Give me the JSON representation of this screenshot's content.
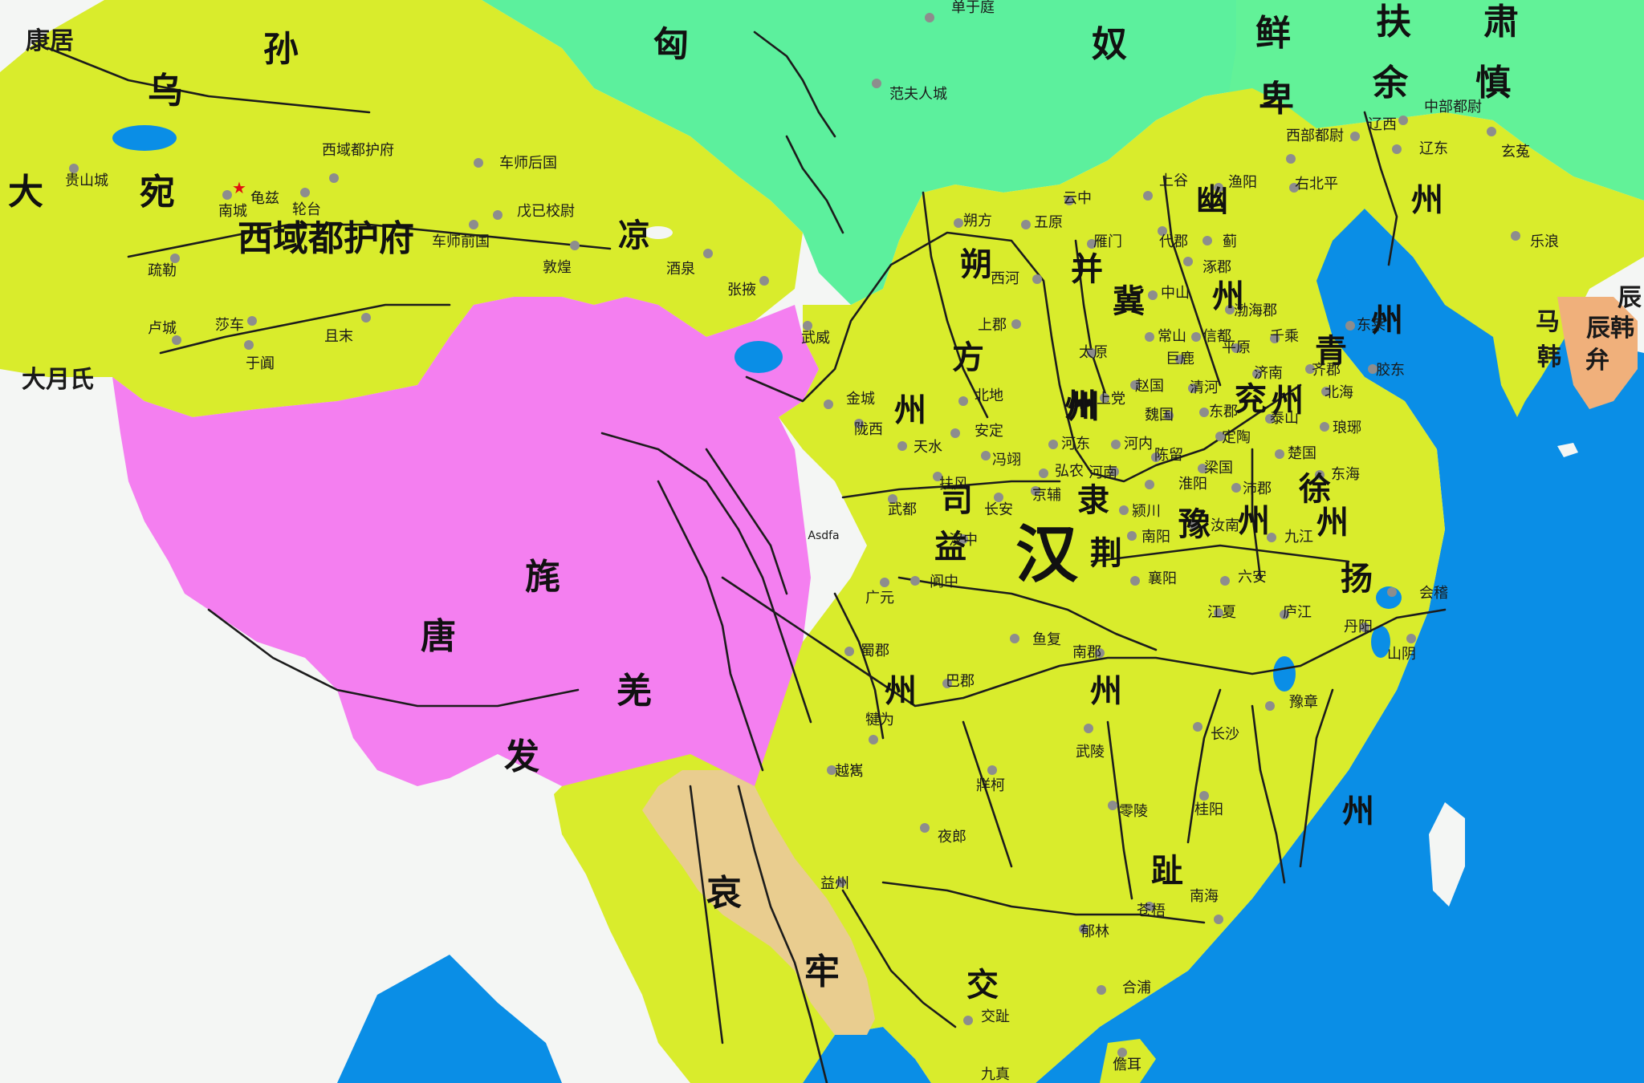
{
  "colors": {
    "han": "#d9ec2c",
    "xianbei": "#62f298",
    "xiongnu": "#5cf09d",
    "qiang": "#f47ff0",
    "aolao": "#e9cd8f",
    "sea": "#0a8ee6",
    "land": "#f4f6f4",
    "rivers": "#1c1c1c"
  },
  "states": {
    "wusun": [
      "乌",
      "孙"
    ],
    "dawan": [
      "大",
      "宛"
    ],
    "xiongnu": [
      "匈",
      "奴"
    ],
    "xianbei": [
      "鲜",
      "卑"
    ],
    "fuyu": [
      "扶",
      "余"
    ],
    "sushen": [
      "肃",
      "慎"
    ],
    "kangju": "康居",
    "yuezhi": "大月氏",
    "han": "汉",
    "qiang": [
      "唐",
      "旄",
      "羌",
      "发"
    ],
    "aolao": [
      "哀",
      "牢"
    ],
    "chenhan": "辰韩",
    "hangroup": [
      "辰",
      "马",
      "韩",
      "弁",
      "韩"
    ]
  },
  "regions": {
    "xiyu": "西域都护府",
    "shuofang": [
      "朔",
      "方",
      "州"
    ],
    "bing": [
      "并",
      "州"
    ],
    "ji": [
      "冀",
      "州"
    ],
    "you": [
      "幽",
      "州"
    ],
    "qing": [
      "青",
      "州"
    ],
    "yan": [
      "兖",
      "州"
    ],
    "xu": [
      "徐",
      "州"
    ],
    "yang": [
      "扬",
      "州"
    ],
    "yu": [
      "豫",
      "州"
    ],
    "jing": [
      "荆",
      "州"
    ],
    "yi": [
      "益",
      "州"
    ],
    "jiaozhi": [
      "交",
      "趾"
    ],
    "liang": [
      "凉",
      "州"
    ],
    "sili": [
      "司",
      "隶"
    ]
  },
  "cities": [
    {
      "name": "单于庭"
    },
    {
      "name": "范夫人城"
    },
    {
      "name": "贵山城"
    },
    {
      "name": "西域都护府"
    },
    {
      "name": "车师后国"
    },
    {
      "name": "龟兹"
    },
    {
      "name": "南城"
    },
    {
      "name": "轮台"
    },
    {
      "name": "车师前国"
    },
    {
      "name": "戊已校尉"
    },
    {
      "name": "疏勒"
    },
    {
      "name": "敦煌"
    },
    {
      "name": "酒泉"
    },
    {
      "name": "张掖"
    },
    {
      "name": "卢城"
    },
    {
      "name": "莎车"
    },
    {
      "name": "且末"
    },
    {
      "name": "于阗"
    },
    {
      "name": "武威"
    },
    {
      "name": "金城"
    },
    {
      "name": "陇西"
    },
    {
      "name": "天水"
    },
    {
      "name": "北地"
    },
    {
      "name": "安定"
    },
    {
      "name": "冯翊"
    },
    {
      "name": "扶风"
    },
    {
      "name": "武都"
    },
    {
      "name": "长安"
    },
    {
      "name": "京辅"
    },
    {
      "name": "汉中"
    },
    {
      "name": "阆中"
    },
    {
      "name": "广元"
    },
    {
      "name": "蜀郡"
    },
    {
      "name": "巴郡"
    },
    {
      "name": "犍为"
    },
    {
      "name": "越嶲"
    },
    {
      "name": "牂柯"
    },
    {
      "name": "夜郎"
    },
    {
      "name": "益州"
    },
    {
      "name": "朔方"
    },
    {
      "name": "五原"
    },
    {
      "name": "云中"
    },
    {
      "name": "西河"
    },
    {
      "name": "雁门"
    },
    {
      "name": "上郡"
    },
    {
      "name": "太原"
    },
    {
      "name": "上党"
    },
    {
      "name": "河东"
    },
    {
      "name": "弘农"
    },
    {
      "name": "河南"
    },
    {
      "name": "河内"
    },
    {
      "name": "上谷"
    },
    {
      "name": "渔阳"
    },
    {
      "name": "右北平"
    },
    {
      "name": "代郡"
    },
    {
      "name": "涿郡"
    },
    {
      "name": "蓟"
    },
    {
      "name": "中山"
    },
    {
      "name": "常山"
    },
    {
      "name": "信都"
    },
    {
      "name": "巨鹿"
    },
    {
      "name": "赵国"
    },
    {
      "name": "魏国"
    },
    {
      "name": "清河"
    },
    {
      "name": "渤海郡"
    },
    {
      "name": "平原"
    },
    {
      "name": "千乘"
    },
    {
      "name": "济南"
    },
    {
      "name": "齐郡"
    },
    {
      "name": "北海"
    },
    {
      "name": "东莱"
    },
    {
      "name": "胶东"
    },
    {
      "name": "琅琊"
    },
    {
      "name": "东郡"
    },
    {
      "name": "定陶"
    },
    {
      "name": "泰山"
    },
    {
      "name": "陈留"
    },
    {
      "name": "梁国"
    },
    {
      "name": "楚国"
    },
    {
      "name": "淮阳"
    },
    {
      "name": "东海"
    },
    {
      "name": "沛郡"
    },
    {
      "name": "颍川"
    },
    {
      "name": "汝南"
    },
    {
      "name": "南阳"
    },
    {
      "name": "九江"
    },
    {
      "name": "襄阳"
    },
    {
      "name": "六安"
    },
    {
      "name": "江夏"
    },
    {
      "name": "庐江"
    },
    {
      "name": "会稽"
    },
    {
      "name": "丹阳"
    },
    {
      "name": "山阴"
    },
    {
      "name": "鱼复"
    },
    {
      "name": "南郡"
    },
    {
      "name": "豫章"
    },
    {
      "name": "长沙"
    },
    {
      "name": "武陵"
    },
    {
      "name": "零陵"
    },
    {
      "name": "桂阳"
    },
    {
      "name": "南海"
    },
    {
      "name": "苍梧"
    },
    {
      "name": "郁林"
    },
    {
      "name": "合浦"
    },
    {
      "name": "交趾"
    },
    {
      "name": "九真"
    },
    {
      "name": "儋耳"
    },
    {
      "name": "辽西"
    },
    {
      "name": "西部都尉"
    },
    {
      "name": "中部都尉"
    },
    {
      "name": "辽东"
    },
    {
      "name": "玄菟"
    },
    {
      "name": "乐浪"
    },
    {
      "name": "Asdfa"
    }
  ]
}
